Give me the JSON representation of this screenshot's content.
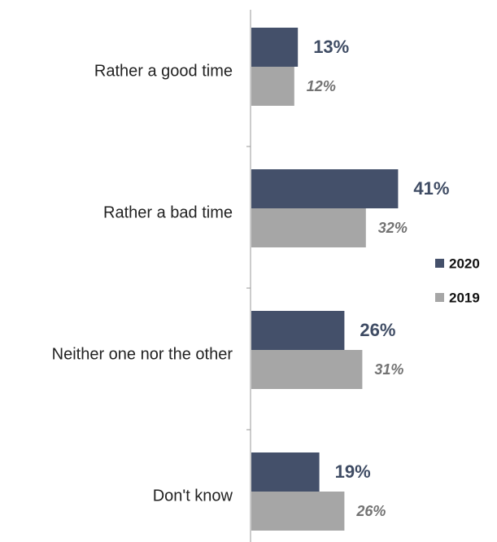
{
  "chart_data": {
    "type": "bar",
    "orientation": "horizontal",
    "categories": [
      "Rather a good time",
      "Rather a bad time",
      "Neither one nor the other",
      "Don't know"
    ],
    "series": [
      {
        "name": "2020",
        "values": [
          13,
          41,
          26,
          19
        ],
        "labels": [
          "13%",
          "41%",
          "26%",
          "19%"
        ],
        "color": "#44506a"
      },
      {
        "name": "2019",
        "values": [
          12,
          32,
          31,
          26
        ],
        "labels": [
          "12%",
          "32%",
          "31%",
          "26%"
        ],
        "color": "#a6a6a6"
      }
    ],
    "unit": "%",
    "xlim": [
      0,
      100
    ],
    "grid": false,
    "legend_position": "right"
  }
}
